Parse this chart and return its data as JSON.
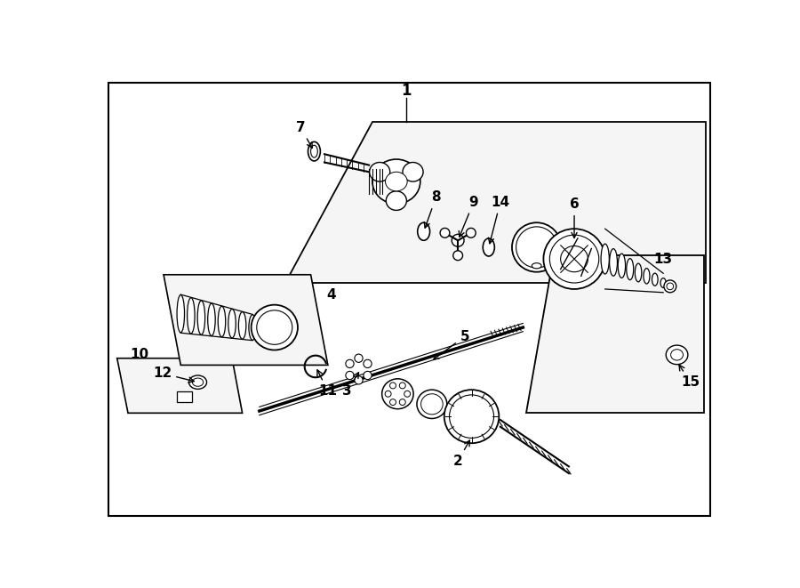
{
  "bg": "#ffffff",
  "lc": "#000000",
  "lw": 1.2,
  "fill_light": "#f5f5f5",
  "fill_white": "#ffffff",
  "fill_mid": "#e8e8e8"
}
